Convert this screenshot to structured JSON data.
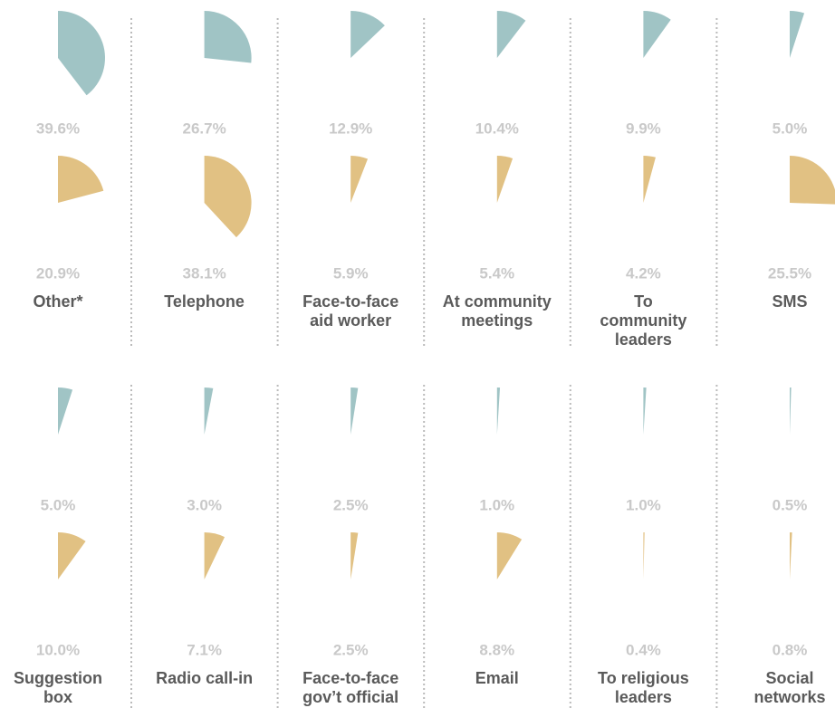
{
  "chart_data": {
    "type": "pie",
    "categories": [
      "Other*",
      "Telephone",
      "Face-to-face\naid worker",
      "At community\nmeetings",
      "To\ncommunity\nleaders",
      "SMS",
      "Suggestion\nbox",
      "Radio call-in",
      "Face-to-face\ngov’t official",
      "Email",
      "To religious\nleaders",
      "Social\nnetworks"
    ],
    "series": [
      {
        "color": "#a0c4c5",
        "values": [
          39.6,
          26.7,
          12.9,
          10.4,
          9.9,
          5.0,
          5.0,
          3.0,
          2.5,
          1.0,
          1.0,
          0.5
        ],
        "value_labels": [
          "39.6%",
          "26.7%",
          "12.9%",
          "10.4%",
          "9.9%",
          "5.0%",
          "5.0%",
          "3.0%",
          "2.5%",
          "1.0%",
          "1.0%",
          "0.5%"
        ]
      },
      {
        "color": "#e1c183",
        "values": [
          20.9,
          38.1,
          5.9,
          5.4,
          4.2,
          25.5,
          10.0,
          7.1,
          2.5,
          8.8,
          0.4,
          0.8
        ],
        "value_labels": [
          "20.9%",
          "38.1%",
          "5.9%",
          "5.4%",
          "4.2%",
          "25.5%",
          "10.0%",
          "7.1%",
          "2.5%",
          "8.8%",
          "0.4%",
          "0.8%"
        ]
      }
    ]
  }
}
